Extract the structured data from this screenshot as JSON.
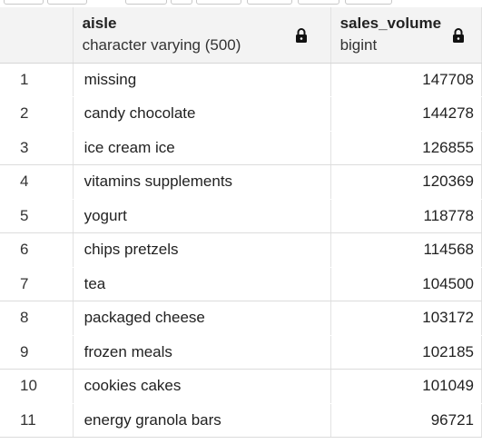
{
  "columns": [
    {
      "name": "aisle",
      "type": "character varying (500)"
    },
    {
      "name": "sales_volume",
      "type": "bigint"
    }
  ],
  "rows": [
    {
      "n": "1",
      "aisle": "missing",
      "sales_volume": "147708"
    },
    {
      "n": "2",
      "aisle": "candy chocolate",
      "sales_volume": "144278"
    },
    {
      "n": "3",
      "aisle": "ice cream ice",
      "sales_volume": "126855"
    },
    {
      "n": "4",
      "aisle": "vitamins supplements",
      "sales_volume": "120369"
    },
    {
      "n": "5",
      "aisle": "yogurt",
      "sales_volume": "118778"
    },
    {
      "n": "6",
      "aisle": "chips pretzels",
      "sales_volume": "114568"
    },
    {
      "n": "7",
      "aisle": "tea",
      "sales_volume": "104500"
    },
    {
      "n": "8",
      "aisle": "packaged cheese",
      "sales_volume": "103172"
    },
    {
      "n": "9",
      "aisle": "frozen meals",
      "sales_volume": "102185"
    },
    {
      "n": "10",
      "aisle": "cookies cakes",
      "sales_volume": "101049"
    },
    {
      "n": "11",
      "aisle": "energy granola bars",
      "sales_volume": "96721"
    }
  ],
  "icons": {
    "column_lock": "lock-icon"
  }
}
